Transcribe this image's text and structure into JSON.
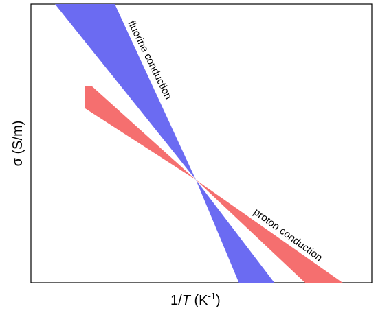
{
  "axes": {
    "x_label_prefix": "1/",
    "x_label_var": "T",
    "x_label_unit_open": " (K",
    "x_label_exp": "-1",
    "x_label_unit_close": ")",
    "y_label": "σ (S/m)"
  },
  "bands": [
    {
      "key": "fluorine",
      "label": "fluorine conduction",
      "color": "#6b6bf2"
    },
    {
      "key": "proton",
      "label": "proton conduction",
      "color": "#f56f6f"
    }
  ]
}
